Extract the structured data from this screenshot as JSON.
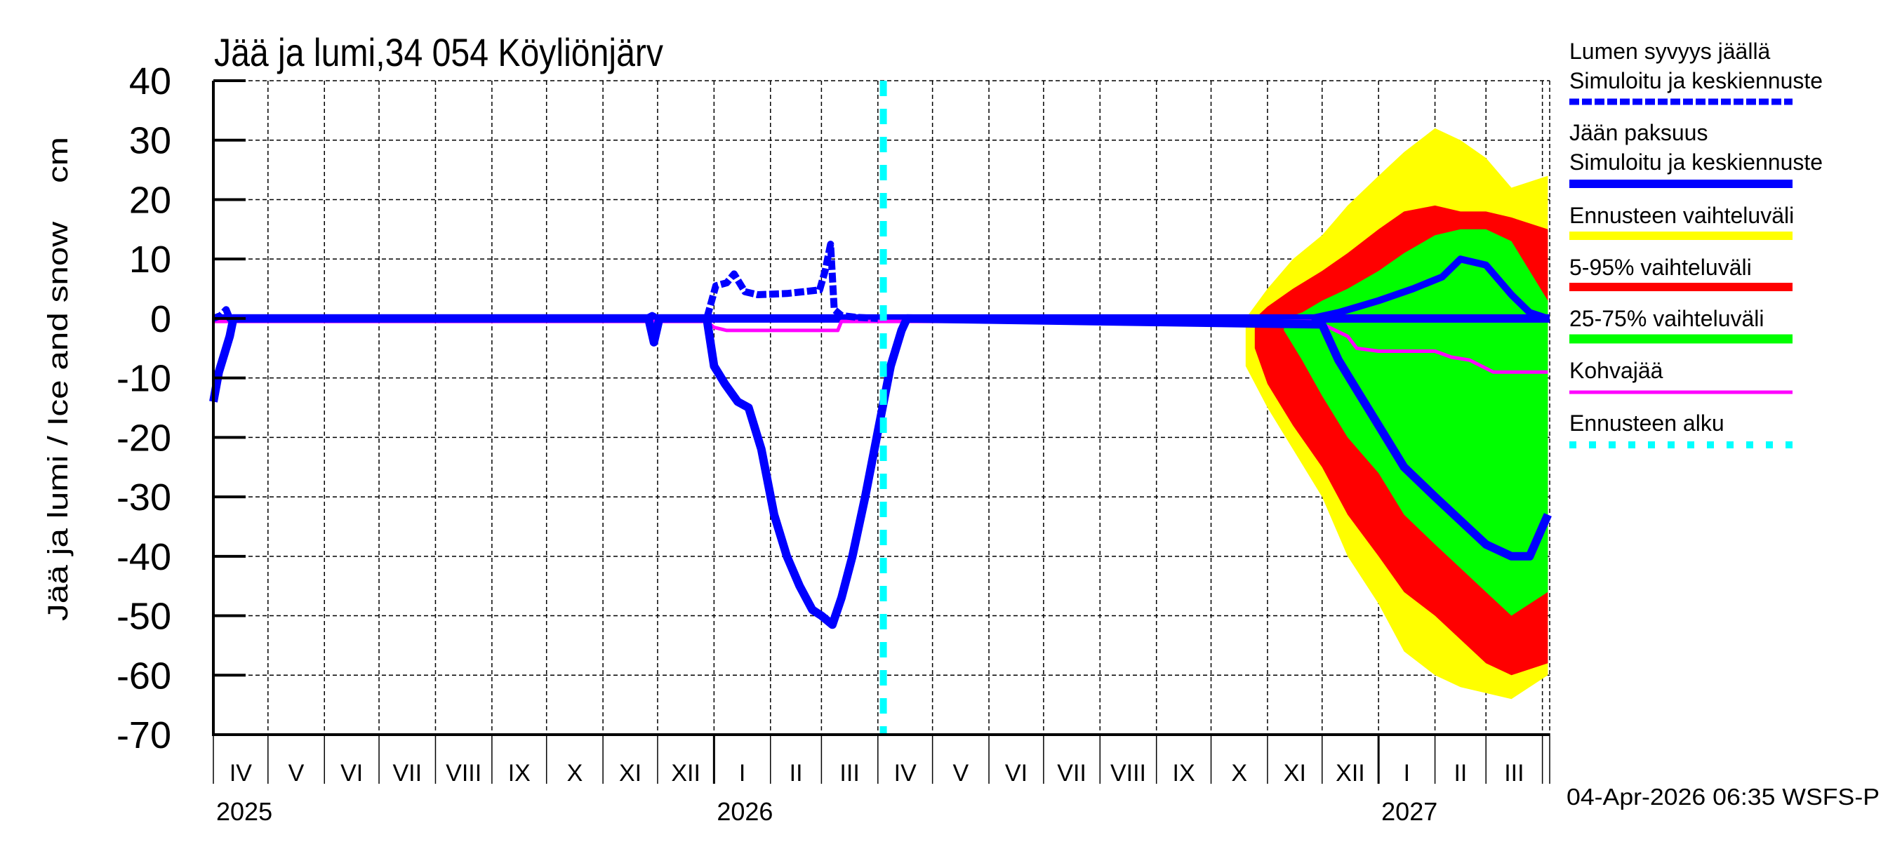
{
  "chart_data": {
    "type": "area",
    "title": "Jää ja lumi,34 054 Köyliönjärv",
    "ylabel": "Jää ja lumi / Ice and snow    cm",
    "xlabel": "",
    "ylim": [
      -70,
      40
    ],
    "yticks": [
      40,
      30,
      20,
      10,
      0,
      -10,
      -20,
      -30,
      -40,
      -50,
      -60,
      -70
    ],
    "grid": true,
    "x_range": [
      "2025-04-01",
      "2027-04-05"
    ],
    "month_labels": [
      "IV",
      "V",
      "VI",
      "VII",
      "VIII",
      "IX",
      "X",
      "XI",
      "XII",
      "I",
      "II",
      "III",
      "IV",
      "V",
      "VI",
      "VII",
      "VIII",
      "IX",
      "X",
      "XI",
      "XII",
      "I",
      "II",
      "III"
    ],
    "year_labels": [
      {
        "label": "2025",
        "month_index": 0
      },
      {
        "label": "2026",
        "month_index": 9
      },
      {
        "label": "2027",
        "month_index": 21
      }
    ],
    "forecast_start": "2026-04-04",
    "legend_position": "right",
    "legend": [
      {
        "label": "Lumen syvyys jäällä\nSimuloitu ja keskiennuste",
        "color": "#0000ff",
        "style": "dashed"
      },
      {
        "label": "Jään paksuus\nSimuloitu ja keskiennuste",
        "color": "#0000ff",
        "style": "solid"
      },
      {
        "label": "Ennusteen vaihteluväli",
        "color": "#ffff00",
        "style": "band"
      },
      {
        "label": "5-95% vaihteluväli",
        "color": "#ff0000",
        "style": "band"
      },
      {
        "label": "25-75% vaihteluväli",
        "color": "#00ff00",
        "style": "band"
      },
      {
        "label": "Kohvajää",
        "color": "#ff00ff",
        "style": "solid"
      },
      {
        "label": "Ennusteen alku",
        "color": "#00ffff",
        "style": "dotted"
      }
    ],
    "series": [
      {
        "name": "Lumen syvyys jäällä (snow depth on ice, cm, positive up)",
        "x": [
          "2025-04-01",
          "2025-04-05",
          "2025-04-08",
          "2025-04-10",
          "2025-11-25",
          "2025-11-28",
          "2025-12-01",
          "2025-12-28",
          "2026-01-02",
          "2026-01-08",
          "2026-01-12",
          "2026-01-18",
          "2026-01-25",
          "2026-02-10",
          "2026-02-28",
          "2026-03-03",
          "2026-03-06",
          "2026-03-08",
          "2026-03-12",
          "2026-03-20",
          "2026-04-01"
        ],
        "values": [
          0,
          0.5,
          1.5,
          0,
          0,
          0.5,
          0,
          0,
          5.5,
          6,
          7.5,
          4.5,
          4,
          4.2,
          4.8,
          8,
          12.5,
          1.5,
          0.5,
          0.2,
          0
        ]
      },
      {
        "name": "Jään paksuus (ice thickness, cm, plotted negative)",
        "x": [
          "2025-04-01",
          "2025-04-04",
          "2025-04-07",
          "2025-04-10",
          "2025-04-12",
          "2025-11-26",
          "2025-11-29",
          "2025-12-02",
          "2025-12-28",
          "2026-01-01",
          "2026-01-07",
          "2026-01-14",
          "2026-01-20",
          "2026-01-27",
          "2026-02-03",
          "2026-02-10",
          "2026-02-17",
          "2026-02-24",
          "2026-03-01",
          "2026-03-07",
          "2026-03-12",
          "2026-03-18",
          "2026-03-25",
          "2026-04-01",
          "2026-04-08",
          "2026-04-14",
          "2026-04-17",
          "2026-12-01",
          "2026-12-10",
          "2026-12-20",
          "2027-01-01",
          "2027-01-15",
          "2027-02-01",
          "2027-02-15",
          "2027-03-01",
          "2027-03-15",
          "2027-03-25",
          "2027-04-04"
        ],
        "values": [
          -14,
          -9,
          -6,
          -3,
          0,
          0,
          -4,
          0,
          0,
          -8,
          -11,
          -14,
          -15,
          -22,
          -33,
          -40,
          -45,
          -49,
          -50,
          -51.5,
          -47,
          -40,
          -30,
          -19,
          -8,
          -2,
          0,
          -1,
          -7,
          -12,
          -18,
          -25,
          -30,
          -34,
          -38,
          -40,
          -40,
          -33
        ]
      },
      {
        "name": "Jään paksuus keskiennuste (forecast median, positive part = snow)",
        "x": [
          "2026-11-25",
          "2026-12-10",
          "2027-01-01",
          "2027-01-20",
          "2027-02-05",
          "2027-02-15",
          "2027-03-01",
          "2027-03-15",
          "2027-03-25",
          "2027-04-04"
        ],
        "values": [
          0,
          1,
          3,
          5,
          7,
          10,
          9,
          4,
          1,
          0
        ]
      },
      {
        "name": "Kohvajää (slush ice, cm)",
        "x": [
          "2025-04-01",
          "2025-12-28",
          "2026-01-01",
          "2026-01-08",
          "2026-01-12",
          "2026-03-10",
          "2026-03-12",
          "2026-11-28",
          "2026-12-05",
          "2026-12-15",
          "2026-12-20",
          "2027-01-01",
          "2027-02-01",
          "2027-02-10",
          "2027-02-20",
          "2027-03-05",
          "2027-04-04"
        ],
        "values": [
          -0.5,
          -0.5,
          -1.5,
          -2,
          -2,
          -2,
          -0.5,
          -0.5,
          -1.5,
          -3,
          -5,
          -5.5,
          -5.5,
          -6.5,
          -7,
          -9,
          -9
        ]
      }
    ],
    "bands": [
      {
        "name": "Ennusteen vaihteluväli (full range)",
        "color": "#ffff00",
        "x": [
          "2026-10-20",
          "2026-11-01",
          "2026-11-15",
          "2026-12-01",
          "2026-12-15",
          "2027-01-01",
          "2027-01-15",
          "2027-02-01",
          "2027-02-15",
          "2027-03-01",
          "2027-03-15",
          "2027-04-04"
        ],
        "upper": [
          0,
          5,
          10,
          14,
          19,
          24,
          28,
          32,
          30,
          27,
          22,
          24
        ],
        "lower": [
          -8,
          -15,
          -22,
          -30,
          -40,
          -48,
          -56,
          -60,
          -62,
          -63,
          -64,
          -60
        ]
      },
      {
        "name": "5-95% vaihteluväli",
        "color": "#ff0000",
        "x": [
          "2026-10-25",
          "2026-11-01",
          "2026-11-15",
          "2026-12-01",
          "2026-12-15",
          "2027-01-01",
          "2027-01-15",
          "2027-02-01",
          "2027-02-15",
          "2027-03-01",
          "2027-03-15",
          "2027-04-04"
        ],
        "upper": [
          0,
          2,
          5,
          8,
          11,
          15,
          18,
          19,
          18,
          18,
          17,
          15
        ],
        "lower": [
          -5,
          -11,
          -18,
          -25,
          -33,
          -40,
          -46,
          -50,
          -54,
          -58,
          -60,
          -58
        ]
      },
      {
        "name": "25-75% vaihteluväli",
        "color": "#00ff00",
        "x": [
          "2026-11-10",
          "2026-11-20",
          "2026-12-01",
          "2026-12-15",
          "2027-01-01",
          "2027-01-15",
          "2027-02-01",
          "2027-02-15",
          "2027-03-01",
          "2027-03-15",
          "2027-04-04"
        ],
        "upper": [
          0,
          1,
          3,
          5,
          8,
          11,
          14,
          15,
          15,
          13,
          3
        ],
        "lower": [
          -2,
          -7,
          -13,
          -20,
          -26,
          -33,
          -38,
          -42,
          -46,
          -50,
          -46
        ]
      }
    ]
  },
  "labels": {
    "title": "Jää ja lumi,34 054 Köyliönjärv",
    "ylabel": "Jää ja lumi / Ice and snow    cm",
    "yticks": [
      "40",
      "30",
      "20",
      "10",
      "0",
      "-10",
      "-20",
      "-30",
      "-40",
      "-50",
      "-60",
      "-70"
    ],
    "months": [
      "IV",
      "V",
      "VI",
      "VII",
      "VIII",
      "IX",
      "X",
      "XI",
      "XII",
      "I",
      "II",
      "III",
      "IV",
      "V",
      "VI",
      "VII",
      "VIII",
      "IX",
      "X",
      "XI",
      "XII",
      "I",
      "II",
      "III"
    ],
    "years": [
      "2025",
      "2026",
      "2027"
    ],
    "legend": {
      "snow_line1": "Lumen syvyys jäällä",
      "snow_line2": "Simuloitu ja keskiennuste",
      "ice_line1": "Jään paksuus",
      "ice_line2": "Simuloitu ja keskiennuste",
      "range": "Ennusteen vaihteluväli",
      "p5_95": "5-95% vaihteluväli",
      "p25_75": "25-75% vaihteluväli",
      "kohva": "Kohvajää",
      "forecast_start": "Ennusteen alku"
    },
    "timestamp": "04-Apr-2026 06:35 WSFS-P"
  },
  "colors": {
    "snow": "#0000ff",
    "ice": "#0000ff",
    "range": "#ffff00",
    "p5_95": "#ff0000",
    "p25_75": "#00ff00",
    "kohva": "#ff00ff",
    "forecast_start": "#00ffff"
  }
}
